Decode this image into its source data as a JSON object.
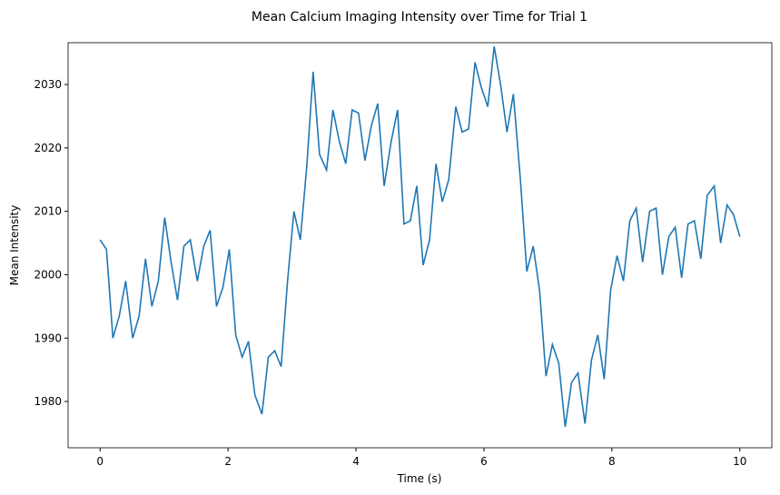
{
  "chart_data": {
    "type": "line",
    "title": "Mean Calcium Imaging Intensity over Time for Trial 1",
    "x_label": "Time (s)",
    "y_label": "Mean Intensity",
    "x": [
      0,
      0.1,
      0.2,
      0.3,
      0.4,
      0.51,
      0.61,
      0.71,
      0.81,
      0.91,
      1.01,
      1.11,
      1.21,
      1.31,
      1.41,
      1.52,
      1.62,
      1.72,
      1.82,
      1.92,
      2.02,
      2.12,
      2.22,
      2.32,
      2.42,
      2.53,
      2.63,
      2.73,
      2.83,
      2.93,
      3.03,
      3.13,
      3.23,
      3.33,
      3.43,
      3.54,
      3.64,
      3.74,
      3.84,
      3.94,
      4.04,
      4.14,
      4.24,
      4.34,
      4.44,
      4.55,
      4.65,
      4.75,
      4.85,
      4.95,
      5.05,
      5.15,
      5.25,
      5.35,
      5.45,
      5.56,
      5.66,
      5.76,
      5.86,
      5.96,
      6.06,
      6.16,
      6.26,
      6.36,
      6.46,
      6.57,
      6.67,
      6.77,
      6.87,
      6.97,
      7.07,
      7.17,
      7.27,
      7.37,
      7.47,
      7.58,
      7.68,
      7.78,
      7.88,
      7.98,
      8.08,
      8.18,
      8.28,
      8.38,
      8.48,
      8.59,
      8.69,
      8.79,
      8.89,
      8.99,
      9.09,
      9.19,
      9.29,
      9.39,
      9.49,
      9.6,
      9.7,
      9.8,
      9.9,
      10
    ],
    "series": [
      {
        "color": "#1f77b4",
        "values": [
          2005.5,
          2004,
          1990,
          1993.5,
          1999,
          1990,
          1993.5,
          2002.5,
          1995,
          1999,
          2009,
          2002,
          1996,
          2004.5,
          2005.5,
          1999,
          2004.5,
          2007,
          1995,
          1998,
          2004,
          1990.5,
          1987,
          1989.5,
          1981,
          1978,
          1987,
          1988,
          1985.5,
          1999,
          2010,
          2005.5,
          2017,
          2032,
          2019,
          2016.5,
          2026,
          2021,
          2017.5,
          2026,
          2025.5,
          2018,
          2023.5,
          2027,
          2014,
          2021,
          2026,
          2008,
          2008.5,
          2014,
          2001.5,
          2005.5,
          2017.5,
          2011.5,
          2015,
          2026.5,
          2022.5,
          2023,
          2033.5,
          2029.5,
          2026.5,
          2036,
          2030,
          2022.5,
          2028.5,
          2015,
          2000.5,
          2004.5,
          1997.5,
          1984,
          1989,
          1986,
          1976,
          1983,
          1984.5,
          1976.5,
          1986.5,
          1990.5,
          1983.5,
          1997.5,
          2003,
          1999,
          2008.5,
          2010.5,
          2002,
          2010,
          2010.5,
          2000,
          2006,
          2007.5,
          1999.5,
          2008,
          2008.5,
          2002.5,
          2012.5,
          2014,
          2005,
          2011,
          2009.5,
          2006
        ]
      }
    ],
    "xlim": [
      -0.5,
      10.5
    ],
    "ylim": [
      1972.7,
      2036.6
    ],
    "xticks": [
      0,
      2,
      4,
      6,
      8,
      10
    ],
    "yticks": [
      1980,
      1990,
      2000,
      2010,
      2020,
      2030
    ]
  }
}
